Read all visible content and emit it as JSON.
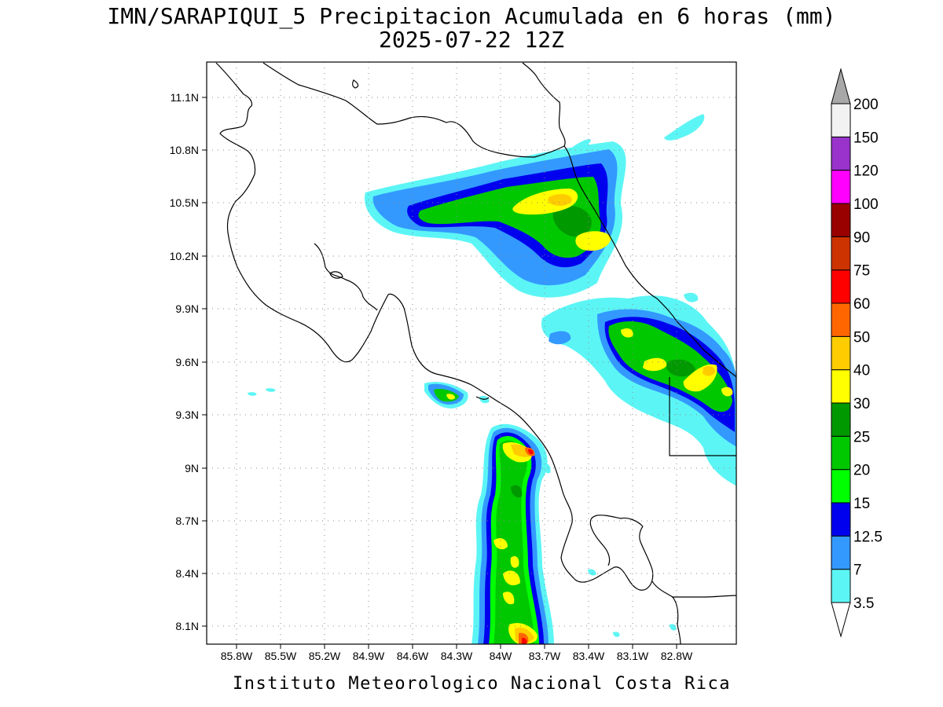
{
  "title": "IMN/SARAPIQUI_5 Precipitacion Acumulada en 6 horas (mm)",
  "subtitle": "2025-07-22 12Z",
  "footer": "Instituto Meteorologico Nacional Costa Rica",
  "lat_labels": [
    "11.1N",
    "10.8N",
    "10.5N",
    "10.2N",
    "9.9N",
    "9.6N",
    "9.3N",
    "9N",
    "8.7N",
    "8.4N",
    "8.1N"
  ],
  "lon_labels": [
    "85.8W",
    "85.5W",
    "85.2W",
    "84.9W",
    "84.6W",
    "84.3W",
    "84W",
    "83.7W",
    "83.4W",
    "83.1W",
    "82.8W"
  ],
  "colorbar": {
    "labels": [
      "3.5",
      "7",
      "12.5",
      "15",
      "20",
      "25",
      "30",
      "40",
      "50",
      "60",
      "75",
      "90",
      "100",
      "120",
      "150",
      "200"
    ],
    "colors": [
      "#5cf5f5",
      "#3399ff",
      "#0000ee",
      "#00ff00",
      "#00c800",
      "#009900",
      "#ffff00",
      "#ffcc00",
      "#ff6600",
      "#ff0000",
      "#cc3300",
      "#990000",
      "#ff00ff",
      "#9933cc",
      "#f2f2f2",
      "#a8a8a8"
    ],
    "bins": [
      [
        "3.5",
        "7"
      ],
      [
        "7",
        "12.5"
      ],
      [
        "12.5",
        "15"
      ],
      [
        "15",
        "20"
      ],
      [
        "20",
        "25"
      ],
      [
        "25",
        "30"
      ],
      [
        "30",
        "40"
      ],
      [
        "40",
        "50"
      ],
      [
        "50",
        "60"
      ],
      [
        "60",
        "75"
      ],
      [
        "75",
        "90"
      ],
      [
        "90",
        "100"
      ],
      [
        "100",
        "120"
      ],
      [
        "120",
        "150"
      ],
      [
        "150",
        "200"
      ]
    ]
  }
}
